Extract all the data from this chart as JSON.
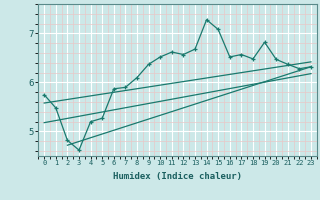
{
  "xlabel": "Humidex (Indice chaleur)",
  "bg_color": "#cce8e8",
  "grid_color_major": "#ffffff",
  "grid_color_minor": "#e8c8c8",
  "line_color": "#1a7a6e",
  "xlim": [
    -0.5,
    23.5
  ],
  "ylim": [
    4.5,
    7.6
  ],
  "yticks": [
    5,
    6,
    7
  ],
  "xticks": [
    0,
    1,
    2,
    3,
    4,
    5,
    6,
    7,
    8,
    9,
    10,
    11,
    12,
    13,
    14,
    15,
    16,
    17,
    18,
    19,
    20,
    21,
    22,
    23
  ],
  "main_line_x": [
    0,
    1,
    2,
    3,
    4,
    5,
    6,
    7,
    8,
    9,
    10,
    11,
    12,
    13,
    14,
    15,
    16,
    17,
    18,
    19,
    20,
    21,
    22,
    23
  ],
  "main_line_y": [
    5.75,
    5.48,
    4.82,
    4.62,
    5.2,
    5.27,
    5.87,
    5.9,
    6.1,
    6.37,
    6.52,
    6.62,
    6.57,
    6.68,
    7.28,
    7.08,
    6.52,
    6.57,
    6.48,
    6.82,
    6.47,
    6.37,
    6.28,
    6.32
  ],
  "reg_line1_x": [
    0,
    23
  ],
  "reg_line1_y": [
    5.58,
    6.42
  ],
  "reg_line2_x": [
    0,
    23
  ],
  "reg_line2_y": [
    5.18,
    6.18
  ],
  "reg_line3_x": [
    2,
    23
  ],
  "reg_line3_y": [
    4.72,
    6.32
  ]
}
